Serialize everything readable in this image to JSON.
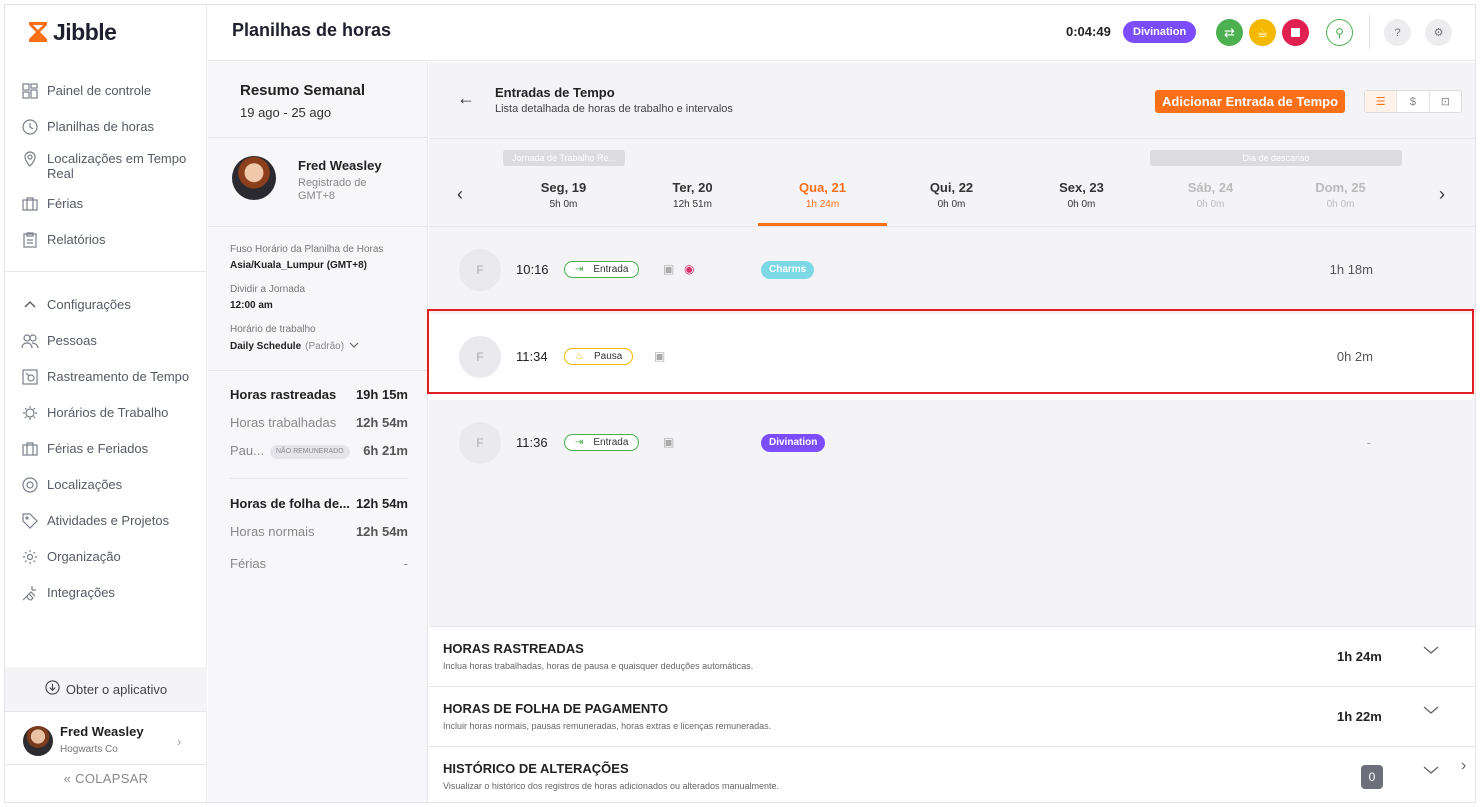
{
  "app": {
    "logo_text": "Jibble",
    "page_title": "Planilhas de horas"
  },
  "header": {
    "timer": "0:04:49",
    "project_badge": "Divination",
    "colors": {
      "green": "#4caf50",
      "yellow": "#f5b800",
      "red": "#e02050"
    }
  },
  "sidebar": {
    "items": [
      {
        "label": "Painel de controle",
        "icon": "dashboard-icon"
      },
      {
        "label": "Planilhas de horas",
        "icon": "clock-icon"
      },
      {
        "label": "Localizações em Tempo Real",
        "icon": "map-pin-icon"
      },
      {
        "label": "Férias",
        "icon": "suitcase-icon"
      },
      {
        "label": "Relatórios",
        "icon": "clipboard-icon"
      }
    ],
    "settings_label": "Configurações",
    "settings_items": [
      {
        "label": "Pessoas",
        "icon": "people-icon"
      },
      {
        "label": "Rastreamento de Tempo",
        "icon": "time-tracking-icon"
      },
      {
        "label": "Horários de Trabalho",
        "icon": "sun-clock-icon"
      },
      {
        "label": "Férias e Feriados",
        "icon": "suitcase-icon"
      },
      {
        "label": "Localizações",
        "icon": "location-icon"
      },
      {
        "label": "Atividades e Projetos",
        "icon": "tag-icon"
      },
      {
        "label": "Organização",
        "icon": "gear-icon"
      },
      {
        "label": "Integrações",
        "icon": "plug-icon"
      }
    ],
    "get_app": "Obter o aplicativo",
    "user_name": "Fred Weasley",
    "user_org": "Hogwarts Co",
    "collapse": "COLAPSAR"
  },
  "summary": {
    "title": "Resumo Semanal",
    "range": "19 ago - 25 ago",
    "person_name": "Fred Weasley",
    "person_reg": "Registrado de GMT+8",
    "tz_label": "Fuso Horário da Planilha de Horas",
    "tz_value": "Asia/Kuala_Lumpur (GMT+8)",
    "split_label": "Dividir a Jornada",
    "split_value": "12:00 am",
    "schedule_label": "Horário de trabalho",
    "schedule_value": "Daily Schedule",
    "schedule_default": "(Padrão)",
    "stats": [
      {
        "label": "Horas rastreadas",
        "value": "19h 15m"
      },
      {
        "label": "Horas trabalhadas",
        "value": "12h 54m"
      },
      {
        "label": "Pau...",
        "pill": "NÃO REMUNERADO",
        "value": "6h 21m"
      },
      {
        "label": "Horas de folha de...",
        "value": "12h 54m"
      },
      {
        "label": "Horas normais",
        "value": "12h 54m"
      },
      {
        "label": "Férias",
        "value": "-"
      }
    ]
  },
  "entries_panel": {
    "title": "Entradas de Tempo",
    "subtitle": "Lista detalhada de horas de trabalho e intervalos",
    "add_button": "Adicionar Entrada de Tempo",
    "tag_workday": "Jornada de Trabalho Re...",
    "tag_rest": "Dia de descanso",
    "days": [
      {
        "name": "Seg, 19",
        "hours": "5h 0m",
        "state": "normal"
      },
      {
        "name": "Ter, 20",
        "hours": "12h 51m",
        "state": "normal"
      },
      {
        "name": "Qua, 21",
        "hours": "1h 24m",
        "state": "active"
      },
      {
        "name": "Qui, 22",
        "hours": "0h 0m",
        "state": "normal"
      },
      {
        "name": "Sex, 23",
        "hours": "0h 0m",
        "state": "normal"
      },
      {
        "name": "Sáb, 24",
        "hours": "0h 0m",
        "state": "off"
      },
      {
        "name": "Dom, 25",
        "hours": "0h 0m",
        "state": "off"
      }
    ],
    "entries": [
      {
        "initial": "F",
        "time": "10:16",
        "type": "Entrada",
        "project": "Charms",
        "project_color": "#7dd8e6",
        "duration": "1h 18m"
      },
      {
        "initial": "F",
        "time": "11:34",
        "type": "Pausa",
        "project": "",
        "duration": "0h 2m"
      },
      {
        "initial": "F",
        "time": "11:36",
        "type": "Entrada",
        "project": "Divination",
        "project_color": "#7c4dff",
        "duration": "-"
      }
    ]
  },
  "accordions": [
    {
      "title": "HORAS RASTREADAS",
      "subtitle": "Inclua horas trabalhadas, horas de pausa e quaisquer deduções automáticas.",
      "value": "1h 24m"
    },
    {
      "title": "HORAS DE FOLHA DE PAGAMENTO",
      "subtitle": "Incluir horas normais, pausas remuneradas, horas extras e licenças remuneradas.",
      "value": "1h 22m"
    },
    {
      "title": "HISTÓRICO DE ALTERAÇÕES",
      "subtitle": "Visualizar o histórico dos registros de horas adicionados ou alterados manualmente.",
      "count": "0"
    }
  ]
}
